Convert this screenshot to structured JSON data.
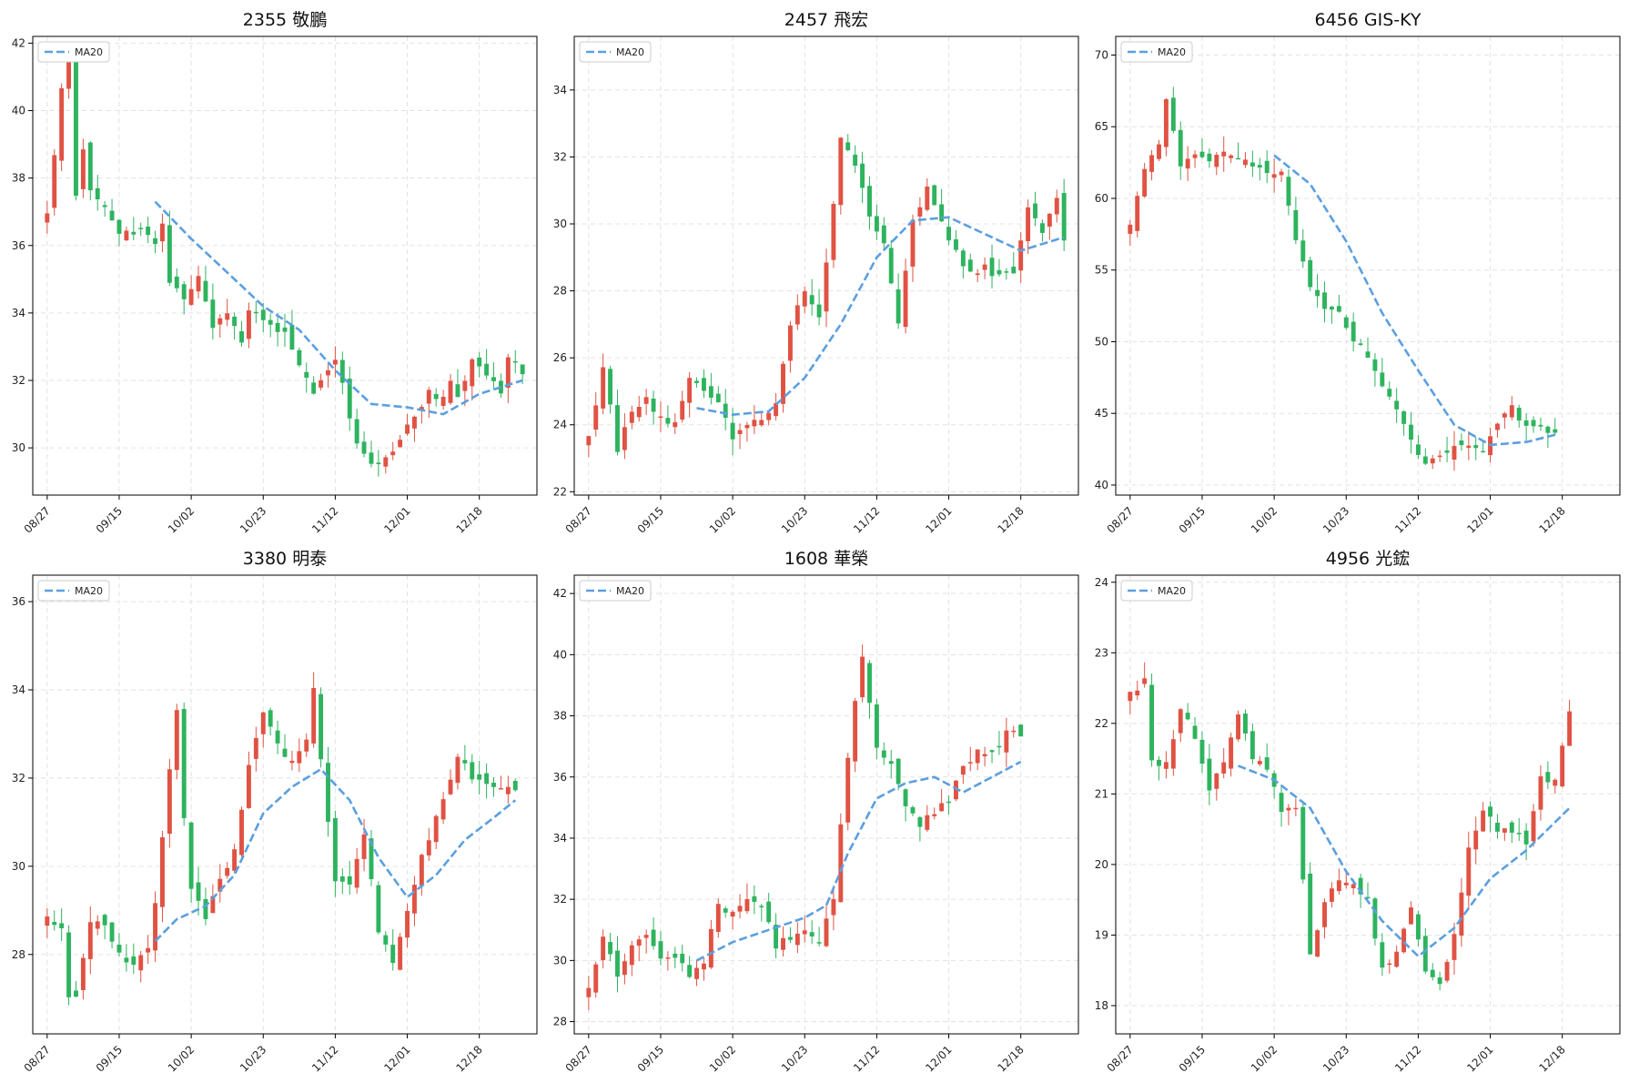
{
  "colors": {
    "up": "#e05243",
    "down": "#2eb35e",
    "ma": "#5b9fe0",
    "grid": "#e3e3e3",
    "frame": "#000000"
  },
  "chart_data": [
    {
      "type": "candlestick",
      "title": "2355 敬鵬",
      "legend": {
        "label": "MA20",
        "position": "top-left"
      },
      "grid": true,
      "x_ticks": [
        "08/27",
        "09/15",
        "10/02",
        "10/23",
        "11/12",
        "12/01",
        "12/18"
      ],
      "y_ticks": [
        30,
        32,
        34,
        36,
        38,
        40,
        42
      ],
      "ylim": [
        28.6,
        42.2
      ],
      "close_points": [
        [
          0,
          36.9
        ],
        [
          2,
          40.6
        ],
        [
          3,
          41.5
        ],
        [
          4,
          37.4
        ],
        [
          5,
          38.9
        ],
        [
          6,
          37.7
        ],
        [
          8,
          37.2
        ],
        [
          10,
          36.3
        ],
        [
          13,
          36.5
        ],
        [
          15,
          36.0
        ],
        [
          16,
          36.6
        ],
        [
          17,
          35.0
        ],
        [
          19,
          34.3
        ],
        [
          21,
          35.2
        ],
        [
          23,
          33.5
        ],
        [
          25,
          34.0
        ],
        [
          27,
          33.2
        ],
        [
          28,
          34.0
        ],
        [
          30,
          33.8
        ],
        [
          33,
          33.4
        ],
        [
          35,
          32.5
        ],
        [
          37,
          31.6
        ],
        [
          40,
          32.7
        ],
        [
          43,
          30.1
        ],
        [
          46,
          29.4
        ],
        [
          48,
          29.8
        ],
        [
          50,
          30.7
        ],
        [
          51,
          31.0
        ],
        [
          53,
          31.6
        ],
        [
          55,
          31.4
        ],
        [
          56,
          32.0
        ],
        [
          57,
          31.6
        ],
        [
          59,
          32.6
        ],
        [
          61,
          32.2
        ],
        [
          63,
          31.7
        ],
        [
          64,
          32.8
        ],
        [
          66,
          32.3
        ]
      ],
      "ma20": [
        [
          15,
          37.3
        ],
        [
          20,
          36.2
        ],
        [
          25,
          35.2
        ],
        [
          30,
          34.2
        ],
        [
          35,
          33.5
        ],
        [
          40,
          32.3
        ],
        [
          45,
          31.3
        ],
        [
          50,
          31.2
        ],
        [
          55,
          31.0
        ],
        [
          60,
          31.6
        ],
        [
          66,
          32.0
        ]
      ]
    },
    {
      "type": "candlestick",
      "title": "2457 飛宏",
      "legend": {
        "label": "MA20",
        "position": "top-left"
      },
      "grid": true,
      "x_ticks": [
        "08/27",
        "09/15",
        "10/02",
        "10/23",
        "11/12",
        "12/01",
        "12/18"
      ],
      "y_ticks": [
        22,
        24,
        26,
        28,
        30,
        32,
        34
      ],
      "ylim": [
        21.9,
        35.6
      ],
      "close_points": [
        [
          0,
          23.6
        ],
        [
          2,
          25.8
        ],
        [
          4,
          23.2
        ],
        [
          6,
          24.5
        ],
        [
          8,
          24.8
        ],
        [
          10,
          24.2
        ],
        [
          12,
          24.0
        ],
        [
          14,
          25.3
        ],
        [
          16,
          25.0
        ],
        [
          18,
          24.6
        ],
        [
          20,
          23.6
        ],
        [
          22,
          24.0
        ],
        [
          24,
          24.2
        ],
        [
          26,
          24.6
        ],
        [
          28,
          27.0
        ],
        [
          30,
          28.0
        ],
        [
          32,
          27.2
        ],
        [
          34,
          30.5
        ],
        [
          35,
          32.5
        ],
        [
          37,
          31.8
        ],
        [
          39,
          30.2
        ],
        [
          41,
          29.5
        ],
        [
          43,
          27.0
        ],
        [
          45,
          30.0
        ],
        [
          47,
          31.0
        ],
        [
          49,
          30.0
        ],
        [
          51,
          29.2
        ],
        [
          53,
          28.5
        ],
        [
          55,
          28.7
        ],
        [
          57,
          28.4
        ],
        [
          59,
          28.6
        ],
        [
          61,
          30.5
        ],
        [
          63,
          29.8
        ],
        [
          65,
          30.8
        ],
        [
          66,
          29.5
        ]
      ],
      "ma20": [
        [
          15,
          24.5
        ],
        [
          20,
          24.3
        ],
        [
          25,
          24.4
        ],
        [
          30,
          25.4
        ],
        [
          35,
          27.0
        ],
        [
          40,
          29.0
        ],
        [
          45,
          30.1
        ],
        [
          50,
          30.2
        ],
        [
          55,
          29.7
        ],
        [
          60,
          29.2
        ],
        [
          66,
          29.6
        ]
      ]
    },
    {
      "type": "candlestick",
      "title": "6456 GIS-KY",
      "legend": {
        "label": "MA20",
        "position": "top-left"
      },
      "grid": true,
      "x_ticks": [
        "08/27",
        "09/15",
        "10/02",
        "10/23",
        "11/12",
        "12/01",
        "12/18"
      ],
      "y_ticks": [
        40,
        45,
        50,
        55,
        60,
        65,
        70
      ],
      "ylim": [
        39.3,
        71.3
      ],
      "close_points": [
        [
          0,
          58.0
        ],
        [
          2,
          62.0
        ],
        [
          4,
          64.0
        ],
        [
          5,
          67.0
        ],
        [
          7,
          62.0
        ],
        [
          9,
          63.0
        ],
        [
          11,
          62.5
        ],
        [
          13,
          63.5
        ],
        [
          15,
          63.0
        ],
        [
          17,
          62.5
        ],
        [
          19,
          61.5
        ],
        [
          21,
          62.0
        ],
        [
          23,
          57.0
        ],
        [
          25,
          54.0
        ],
        [
          27,
          52.0
        ],
        [
          29,
          52.0
        ],
        [
          31,
          50.0
        ],
        [
          33,
          49.0
        ],
        [
          35,
          47.0
        ],
        [
          37,
          45.0
        ],
        [
          39,
          43.0
        ],
        [
          41,
          41.5
        ],
        [
          43,
          42.0
        ],
        [
          45,
          42.5
        ],
        [
          47,
          42.5
        ],
        [
          49,
          42.5
        ],
        [
          51,
          44.0
        ],
        [
          53,
          45.5
        ],
        [
          55,
          44.0
        ],
        [
          57,
          44.0
        ],
        [
          59,
          43.5
        ]
      ],
      "ma20": [
        [
          20,
          63.0
        ],
        [
          25,
          61.0
        ],
        [
          30,
          57.0
        ],
        [
          35,
          52.0
        ],
        [
          40,
          48.0
        ],
        [
          45,
          44.2
        ],
        [
          50,
          42.8
        ],
        [
          55,
          43.0
        ],
        [
          59,
          43.5
        ]
      ]
    },
    {
      "type": "candlestick",
      "title": "3380 明泰",
      "legend": {
        "label": "MA20",
        "position": "top-left"
      },
      "grid": true,
      "x_ticks": [
        "08/27",
        "09/15",
        "10/02",
        "10/23",
        "11/12",
        "12/01",
        "12/18"
      ],
      "y_ticks": [
        28,
        30,
        32,
        34,
        36
      ],
      "ylim": [
        26.2,
        36.6
      ],
      "close_points": [
        [
          0,
          28.8
        ],
        [
          2,
          28.5
        ],
        [
          3,
          27.1
        ],
        [
          4,
          27.0
        ],
        [
          6,
          28.7
        ],
        [
          8,
          28.7
        ],
        [
          10,
          28.0
        ],
        [
          12,
          27.8
        ],
        [
          14,
          28.2
        ],
        [
          15,
          29.2
        ],
        [
          17,
          32.2
        ],
        [
          18,
          33.5
        ],
        [
          19,
          31.0
        ],
        [
          20,
          29.5
        ],
        [
          22,
          28.8
        ],
        [
          24,
          29.8
        ],
        [
          26,
          30.3
        ],
        [
          28,
          32.3
        ],
        [
          30,
          33.5
        ],
        [
          32,
          32.8
        ],
        [
          34,
          32.3
        ],
        [
          36,
          32.8
        ],
        [
          37,
          34.0
        ],
        [
          38,
          32.5
        ],
        [
          40,
          29.7
        ],
        [
          42,
          29.5
        ],
        [
          44,
          30.8
        ],
        [
          46,
          28.5
        ],
        [
          48,
          27.8
        ],
        [
          50,
          29.0
        ],
        [
          52,
          30.2
        ],
        [
          53,
          30.6
        ],
        [
          55,
          31.5
        ],
        [
          57,
          32.5
        ],
        [
          59,
          32.0
        ],
        [
          61,
          31.8
        ],
        [
          63,
          31.8
        ],
        [
          65,
          31.8
        ]
      ],
      "ma20": [
        [
          15,
          28.3
        ],
        [
          18,
          28.8
        ],
        [
          22,
          29.1
        ],
        [
          26,
          29.8
        ],
        [
          30,
          31.2
        ],
        [
          34,
          31.8
        ],
        [
          38,
          32.2
        ],
        [
          42,
          31.5
        ],
        [
          46,
          30.2
        ],
        [
          50,
          29.3
        ],
        [
          54,
          29.8
        ],
        [
          58,
          30.6
        ],
        [
          62,
          31.1
        ],
        [
          65,
          31.5
        ]
      ]
    },
    {
      "type": "candlestick",
      "title": "1608 華榮",
      "legend": {
        "label": "MA20",
        "position": "top-left"
      },
      "grid": true,
      "x_ticks": [
        "08/27",
        "09/15",
        "10/02",
        "10/23",
        "11/12",
        "12/01",
        "12/18"
      ],
      "y_ticks": [
        28,
        30,
        32,
        34,
        36,
        38,
        40,
        42
      ],
      "ylim": [
        27.6,
        42.6
      ],
      "close_points": [
        [
          0,
          29.0
        ],
        [
          2,
          30.8
        ],
        [
          4,
          29.5
        ],
        [
          6,
          30.5
        ],
        [
          8,
          30.8
        ],
        [
          10,
          30.0
        ],
        [
          12,
          30.2
        ],
        [
          14,
          29.5
        ],
        [
          16,
          30.0
        ],
        [
          18,
          31.8
        ],
        [
          20,
          31.6
        ],
        [
          22,
          32.0
        ],
        [
          24,
          31.8
        ],
        [
          26,
          30.5
        ],
        [
          28,
          30.8
        ],
        [
          30,
          31.0
        ],
        [
          32,
          30.5
        ],
        [
          34,
          32.0
        ],
        [
          35,
          34.5
        ],
        [
          37,
          38.5
        ],
        [
          38,
          40.0
        ],
        [
          40,
          37.0
        ],
        [
          42,
          36.5
        ],
        [
          44,
          35.0
        ],
        [
          46,
          34.5
        ],
        [
          48,
          34.8
        ],
        [
          50,
          35.3
        ],
        [
          52,
          36.3
        ],
        [
          54,
          36.8
        ],
        [
          56,
          36.7
        ],
        [
          58,
          37.5
        ],
        [
          60,
          37.3
        ]
      ],
      "ma20": [
        [
          15,
          30.0
        ],
        [
          20,
          30.6
        ],
        [
          25,
          31.0
        ],
        [
          30,
          31.4
        ],
        [
          33,
          31.8
        ],
        [
          36,
          33.5
        ],
        [
          40,
          35.3
        ],
        [
          44,
          35.8
        ],
        [
          48,
          36.0
        ],
        [
          52,
          35.5
        ],
        [
          56,
          36.0
        ],
        [
          60,
          36.5
        ]
      ]
    },
    {
      "type": "candlestick",
      "title": "4956 光鋐",
      "legend": {
        "label": "MA20",
        "position": "top-left"
      },
      "grid": true,
      "x_ticks": [
        "08/27",
        "09/15",
        "10/02",
        "10/23",
        "11/12",
        "12/01",
        "12/18"
      ],
      "y_ticks": [
        18,
        19,
        20,
        21,
        22,
        23,
        24
      ],
      "ylim": [
        17.6,
        24.1
      ],
      "close_points": [
        [
          0,
          22.4
        ],
        [
          2,
          22.6
        ],
        [
          3,
          21.5
        ],
        [
          5,
          21.4
        ],
        [
          7,
          22.2
        ],
        [
          9,
          21.8
        ],
        [
          11,
          21.0
        ],
        [
          13,
          21.5
        ],
        [
          15,
          22.1
        ],
        [
          17,
          21.5
        ],
        [
          19,
          21.4
        ],
        [
          21,
          20.8
        ],
        [
          23,
          20.8
        ],
        [
          25,
          18.7
        ],
        [
          27,
          19.5
        ],
        [
          29,
          19.8
        ],
        [
          31,
          19.7
        ],
        [
          33,
          19.5
        ],
        [
          35,
          18.5
        ],
        [
          37,
          18.8
        ],
        [
          39,
          19.4
        ],
        [
          41,
          18.5
        ],
        [
          43,
          18.3
        ],
        [
          45,
          19.0
        ],
        [
          47,
          20.2
        ],
        [
          49,
          20.8
        ],
        [
          51,
          20.5
        ],
        [
          53,
          20.5
        ],
        [
          55,
          20.3
        ],
        [
          57,
          21.2
        ],
        [
          59,
          21.2
        ],
        [
          61,
          22.2
        ]
      ],
      "ma20": [
        [
          15,
          21.4
        ],
        [
          20,
          21.2
        ],
        [
          25,
          20.8
        ],
        [
          30,
          19.9
        ],
        [
          35,
          19.2
        ],
        [
          40,
          18.7
        ],
        [
          45,
          19.1
        ],
        [
          50,
          19.8
        ],
        [
          55,
          20.2
        ],
        [
          61,
          20.8
        ]
      ]
    }
  ]
}
